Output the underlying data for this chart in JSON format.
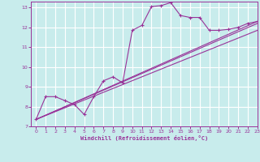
{
  "title": "",
  "xlabel": "Windchill (Refroidissement éolien,°C)",
  "ylabel": "",
  "bg_color": "#c8ecec",
  "grid_color": "#aadddd",
  "line_color": "#993399",
  "xlim": [
    -0.5,
    23
  ],
  "ylim": [
    7,
    13.3
  ],
  "xticks": [
    0,
    1,
    2,
    3,
    4,
    5,
    6,
    7,
    8,
    9,
    10,
    11,
    12,
    13,
    14,
    15,
    16,
    17,
    18,
    19,
    20,
    21,
    22,
    23
  ],
  "yticks": [
    7,
    8,
    9,
    10,
    11,
    12,
    13
  ],
  "series": [
    {
      "x": [
        0,
        1,
        2,
        3,
        4,
        5,
        6,
        7,
        8,
        9,
        10,
        11,
        12,
        13,
        14,
        15,
        16,
        17,
        18,
        19,
        20,
        21,
        22,
        23
      ],
      "y": [
        7.35,
        8.5,
        8.5,
        8.3,
        8.1,
        7.6,
        8.5,
        9.3,
        9.5,
        9.2,
        11.85,
        12.1,
        13.05,
        13.1,
        13.25,
        12.6,
        12.5,
        12.5,
        11.85,
        11.85,
        11.9,
        12.0,
        12.2,
        12.3
      ],
      "has_markers": true
    },
    {
      "x": [
        0,
        23
      ],
      "y": [
        7.35,
        12.3
      ],
      "has_markers": false
    },
    {
      "x": [
        0,
        23
      ],
      "y": [
        7.35,
        12.2
      ],
      "has_markers": false
    },
    {
      "x": [
        0,
        23
      ],
      "y": [
        7.35,
        11.85
      ],
      "has_markers": false
    }
  ]
}
